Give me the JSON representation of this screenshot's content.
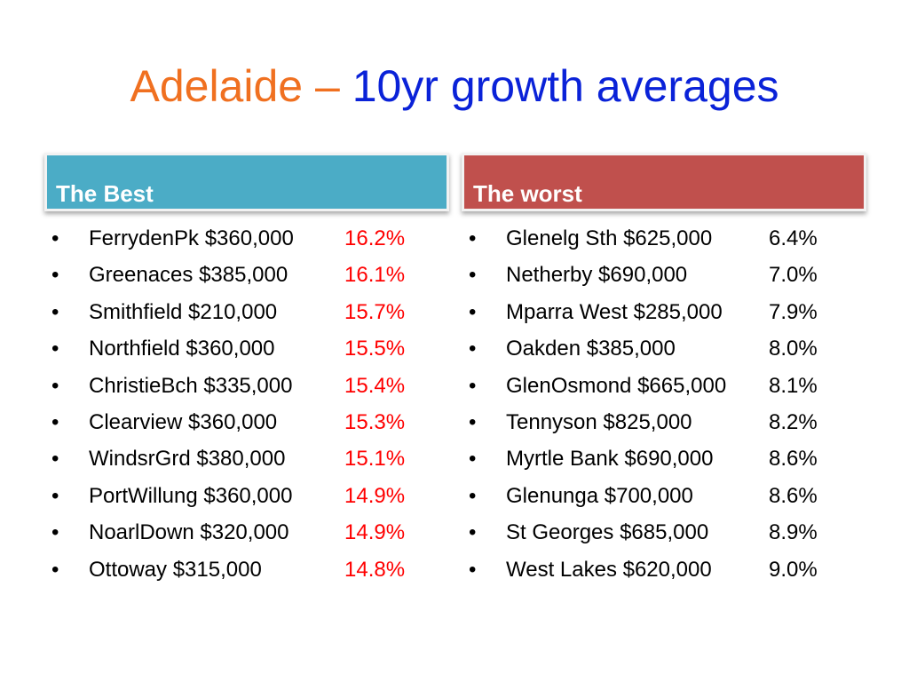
{
  "title": {
    "part1": "Adelaide – ",
    "part2": "10yr growth averages"
  },
  "columns": [
    {
      "header": "The Best",
      "items": [
        {
          "text": "FerrydenPk $360,000",
          "value": "16.2%"
        },
        {
          "text": "Greenaces $385,000",
          "value": "16.1%"
        },
        {
          "text": "Smithfield $210,000",
          "value": "15.7%"
        },
        {
          "text": "Northfield $360,000",
          "value": "15.5%"
        },
        {
          "text": "ChristieBch $335,000",
          "value": "15.4%"
        },
        {
          "text": "Clearview $360,000",
          "value": "15.3%"
        },
        {
          "text": "WindsrGrd $380,000",
          "value": "15.1%"
        },
        {
          "text": "PortWillung $360,000",
          "value": "14.9%"
        },
        {
          "text": "NoarlDown $320,000",
          "value": "14.9%"
        },
        {
          "text": "Ottoway $315,000",
          "value": "14.8%"
        }
      ]
    },
    {
      "header": "The worst",
      "items": [
        {
          "text": "Glenelg Sth $625,000",
          "value": "6.4%"
        },
        {
          "text": "Netherby $690,000",
          "value": "7.0%"
        },
        {
          "text": "Mparra West $285,000",
          "value": "7.9%"
        },
        {
          "text": "Oakden $385,000",
          "value": "8.0%"
        },
        {
          "text": "GlenOsmond $665,000",
          "value": "8.1%"
        },
        {
          "text": "Tennyson $825,000",
          "value": "8.2%"
        },
        {
          "text": "Myrtle Bank $690,000",
          "value": "8.6%"
        },
        {
          "text": "Glenunga $700,000",
          "value": "8.6%"
        },
        {
          "text": "St Georges $685,000",
          "value": "8.9%"
        },
        {
          "text": "West Lakes $620,000",
          "value": "9.0%"
        }
      ]
    }
  ],
  "bullet_glyph": "•",
  "colors": {
    "title_accent": "#f07020",
    "title_main": "#0a22d8",
    "best_header": "#4bacc6",
    "worst_header": "#c0504d",
    "best_value": "#ff0000"
  }
}
